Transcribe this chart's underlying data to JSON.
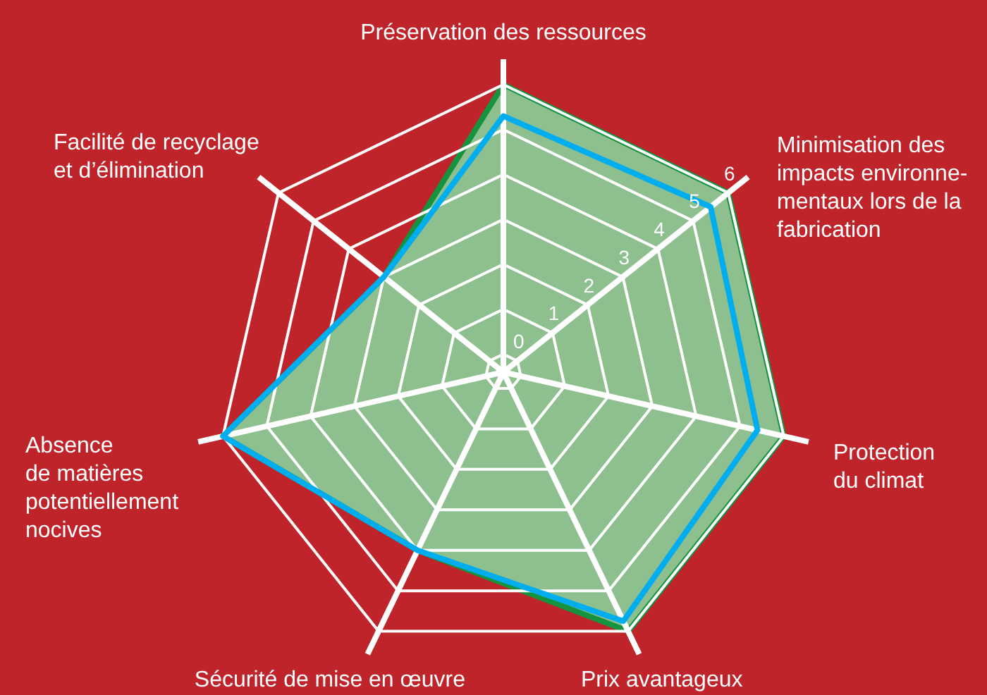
{
  "chart_data": {
    "type": "radar",
    "categories": [
      "Préservation des ressources",
      "Minimisation des\nimpacts environne-\nmentaux lors de la\nfabrication",
      "Protection\ndu climat",
      "Prix avantageux",
      "Sécurité de mise en œuvre",
      "Absence\nde matières\npotentiellement\nnocives",
      "Facilité de recyclage\net d’élimination"
    ],
    "series": [
      {
        "type": "area",
        "color": "#15933f",
        "values": [
          6,
          6,
          6,
          6,
          4,
          6,
          3
        ]
      },
      {
        "color": "#00aeef",
        "values": [
          5.3,
          5.5,
          5.4,
          5.75,
          4,
          6,
          3
        ]
      }
    ],
    "ylim": [
      -0.4,
      6
    ],
    "yticks": [
      0,
      1,
      2,
      3,
      4,
      5,
      6
    ],
    "grid": true
  }
}
